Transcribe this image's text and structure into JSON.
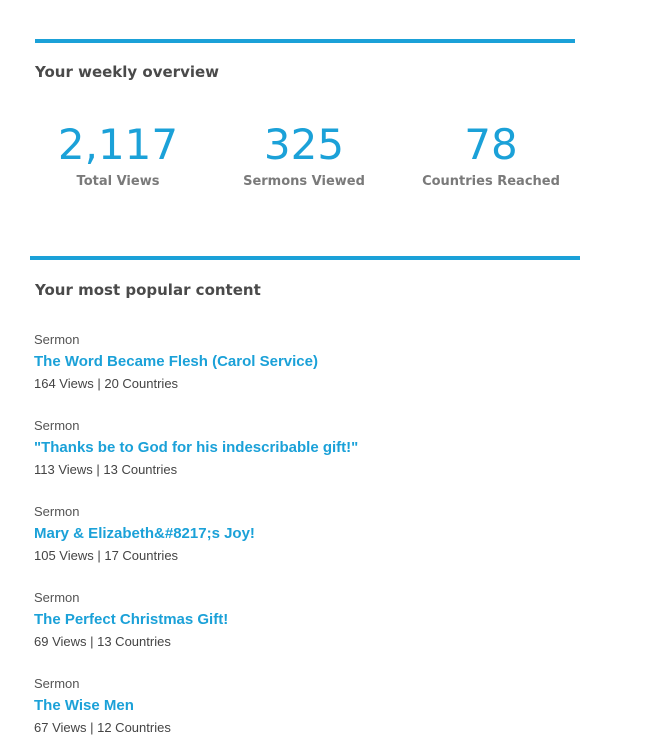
{
  "overview": {
    "heading": "Your weekly overview",
    "stats": [
      {
        "value": "2,117",
        "label": "Total Views"
      },
      {
        "value": "325",
        "label": "Sermons Viewed"
      },
      {
        "value": "78",
        "label": "Countries Reached"
      }
    ]
  },
  "popular": {
    "heading": "Your most popular content",
    "items": [
      {
        "type": "Sermon",
        "title": "The Word Became Flesh (Carol Service)",
        "meta": "164 Views | 20 Countries"
      },
      {
        "type": "Sermon",
        "title": "\"Thanks be to God for his indescribable gift!\"",
        "meta": "113 Views | 13 Countries"
      },
      {
        "type": "Sermon",
        "title": "Mary & Elizabeth&#8217;s Joy!",
        "meta": "105 Views | 17 Countries"
      },
      {
        "type": "Sermon",
        "title": "The Perfect Christmas Gift!",
        "meta": "69 Views | 13 Countries"
      },
      {
        "type": "Sermon",
        "title": "The Wise Men",
        "meta": "67 Views | 12 Countries"
      }
    ]
  },
  "colors": {
    "accent": "#1ba1d8"
  }
}
